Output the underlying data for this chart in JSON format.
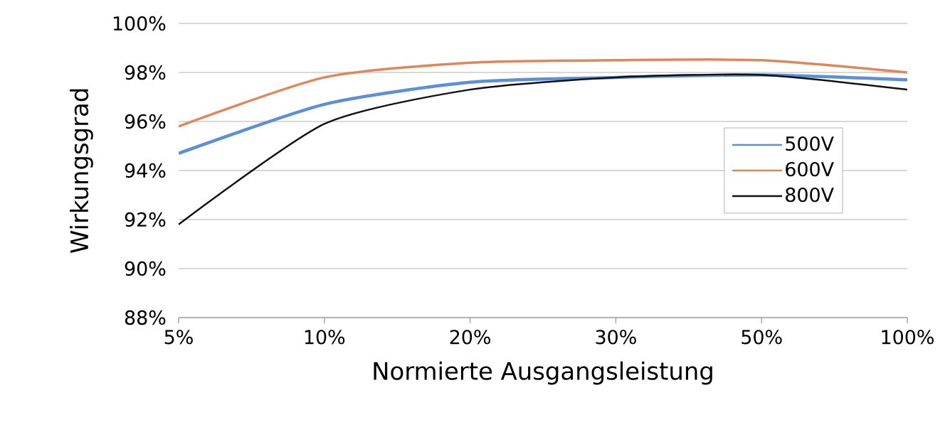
{
  "chart_data": {
    "type": "line",
    "xlabel": "Normierte Ausgangsleistung",
    "ylabel": "Wirkungsgrad",
    "categories": [
      "5%",
      "10%",
      "20%",
      "30%",
      "50%",
      "100%"
    ],
    "series": [
      {
        "name": "500V",
        "color": "#5b8fd6",
        "values": [
          94.7,
          96.7,
          97.6,
          97.8,
          97.9,
          97.7
        ]
      },
      {
        "name": "600V",
        "color": "#e0875a",
        "values": [
          95.8,
          97.8,
          98.4,
          98.5,
          98.5,
          98.0
        ]
      },
      {
        "name": "800V",
        "color": "#111111",
        "values": [
          91.8,
          95.9,
          97.3,
          97.8,
          97.9,
          97.3
        ]
      }
    ],
    "ylim": [
      88,
      100
    ],
    "yticks": [
      {
        "value": 88,
        "label": "88%"
      },
      {
        "value": 90,
        "label": "90%"
      },
      {
        "value": 92,
        "label": "92%"
      },
      {
        "value": 94,
        "label": "94%"
      },
      {
        "value": 96,
        "label": "96%"
      },
      {
        "value": 98,
        "label": "98%"
      },
      {
        "value": 100,
        "label": "100%"
      }
    ],
    "grid": "y",
    "legend": "right",
    "marker": "none"
  }
}
